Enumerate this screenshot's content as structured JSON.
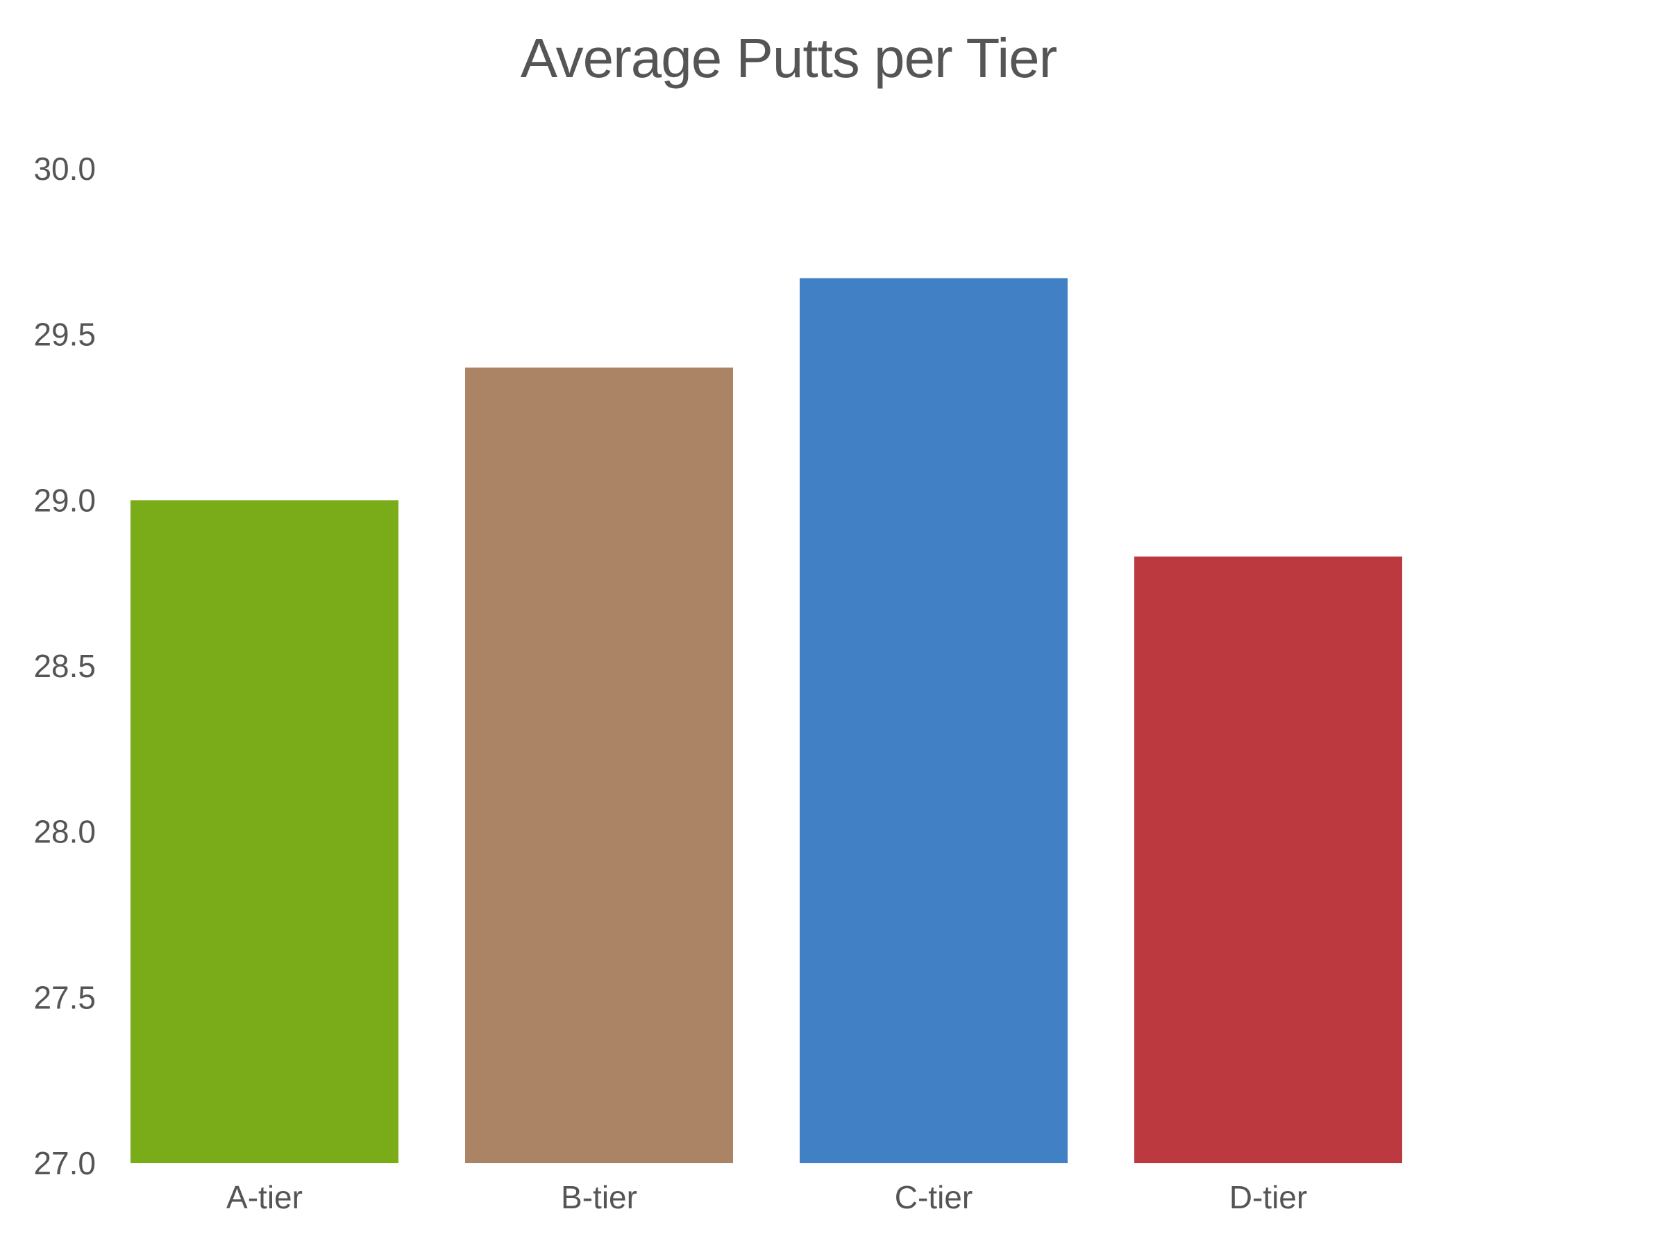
{
  "chart_data": {
    "type": "bar",
    "title": "Average Putts per Tier",
    "xlabel": "",
    "ylabel": "",
    "categories": [
      "A-tier",
      "B-tier",
      "C-tier",
      "D-tier"
    ],
    "values": [
      29.0,
      29.4,
      29.67,
      28.83
    ],
    "colors": [
      "#7aab19",
      "#ab8365",
      "#4180c5",
      "#bc3a3f"
    ],
    "ylim": [
      27.0,
      30.0
    ],
    "yticks": [
      "27.0",
      "27.5",
      "28.0",
      "28.5",
      "29.0",
      "29.5",
      "30.0"
    ],
    "grid": false,
    "legend": "none"
  }
}
